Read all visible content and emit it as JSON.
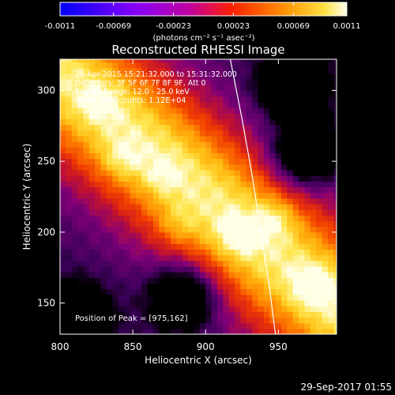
{
  "chart_data": {
    "type": "heatmap",
    "title": "Reconstructed RHESSI Image",
    "xlabel": "Heliocentric X (arcsec)",
    "ylabel": "Heliocentric Y (arcsec)",
    "xlim": [
      800,
      990
    ],
    "ylim": [
      128,
      322
    ],
    "x_ticks": [
      800,
      850,
      900,
      950
    ],
    "x_tick_labels": [
      "800",
      "850",
      "900",
      "950"
    ],
    "y_ticks": [
      150,
      200,
      250,
      300
    ],
    "y_tick_labels": [
      "150",
      "200",
      "250",
      "300"
    ],
    "grid": false,
    "colormap": "RHESSI fire (black-purple-red-orange-yellow-white)",
    "colorbar": {
      "ticks": [
        -0.0011,
        -0.00069,
        -0.00023,
        0.00023,
        0.00069,
        0.0011
      ],
      "tick_labels": [
        "-0.0011",
        "-0.00069",
        "-0.00023",
        "0.00023",
        "0.00069",
        "0.0011"
      ],
      "range": [
        -0.0011,
        0.0011
      ],
      "unit_label": "(photons cm⁻² s⁻¹ asec⁻²)"
    },
    "annotations": [
      "20-Apr-2015 15:21:32.000 to 15:31:32.000",
      "Detectors: 3F 5F 6F 7F 8F 9F, Att 0",
      "Energy Range: 12.0 - 25.0 keV",
      "Clean     Total counts: 1.12E+04"
    ],
    "peak_label": "Position of Peak = [975,162]",
    "peak": [
      975,
      162
    ],
    "limb_curve": [
      [
        917,
        322
      ],
      [
        925,
        280
      ],
      [
        932,
        240
      ],
      [
        938,
        200
      ],
      [
        944,
        160
      ],
      [
        948,
        128
      ]
    ],
    "hot_spots": [
      {
        "x": 975,
        "y": 162,
        "level": 1.0
      },
      {
        "x": 922,
        "y": 198,
        "level": 0.93
      },
      {
        "x": 948,
        "y": 210,
        "level": 0.9
      },
      {
        "x": 842,
        "y": 252,
        "level": 0.88
      },
      {
        "x": 880,
        "y": 205,
        "level": 0.85
      },
      {
        "x": 828,
        "y": 292,
        "level": 0.86
      },
      {
        "x": 870,
        "y": 240,
        "level": 0.83
      }
    ],
    "cold_spots": [
      {
        "x": 960,
        "y": 305,
        "level": 0.05
      },
      {
        "x": 810,
        "y": 140,
        "level": 0.1
      },
      {
        "x": 885,
        "y": 155,
        "level": 0.2
      },
      {
        "x": 968,
        "y": 255,
        "level": 0.3
      }
    ]
  },
  "timestamp": "29-Sep-2017 01:55"
}
